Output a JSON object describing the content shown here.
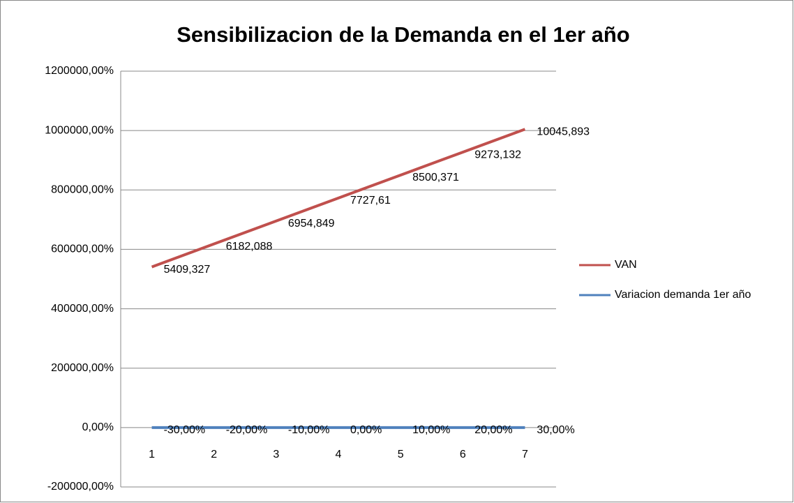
{
  "chart_data": {
    "type": "line",
    "title": "Sensibilizacion de la Demanda en el 1er año",
    "categories": [
      "1",
      "2",
      "3",
      "4",
      "5",
      "6",
      "7"
    ],
    "series": [
      {
        "name": "VAN",
        "color": "#c0504d",
        "values": [
          540932.7,
          618208.8,
          695484.9,
          772761,
          850037.1,
          927313.2,
          1004589.3
        ],
        "value_labels": [
          "5409,327",
          "6182,088",
          "6954,849",
          "7727,61",
          "8500,371",
          "9273,132",
          "10045,893"
        ]
      },
      {
        "name": "Variacion demanda 1er año",
        "color": "#4f81bd",
        "values": [
          -30,
          -20,
          -10,
          0,
          10,
          20,
          30
        ],
        "value_labels": [
          "-30,00%",
          "-20,00%",
          "-10,00%",
          "0,00%",
          "10,00%",
          "20,00%",
          "30,00%"
        ]
      }
    ],
    "ylim": [
      -200000,
      1200000
    ],
    "yticks": [
      {
        "value": -200000,
        "label": "-200000,00%"
      },
      {
        "value": 0,
        "label": "0,00%"
      },
      {
        "value": 200000,
        "label": "200000,00%"
      },
      {
        "value": 400000,
        "label": "400000,00%"
      },
      {
        "value": 600000,
        "label": "600000,00%"
      },
      {
        "value": 800000,
        "label": "800000,00%"
      },
      {
        "value": 1000000,
        "label": "1000000,00%"
      },
      {
        "value": 1200000,
        "label": "1200000,00%"
      }
    ],
    "grid": true,
    "legend": "right"
  }
}
